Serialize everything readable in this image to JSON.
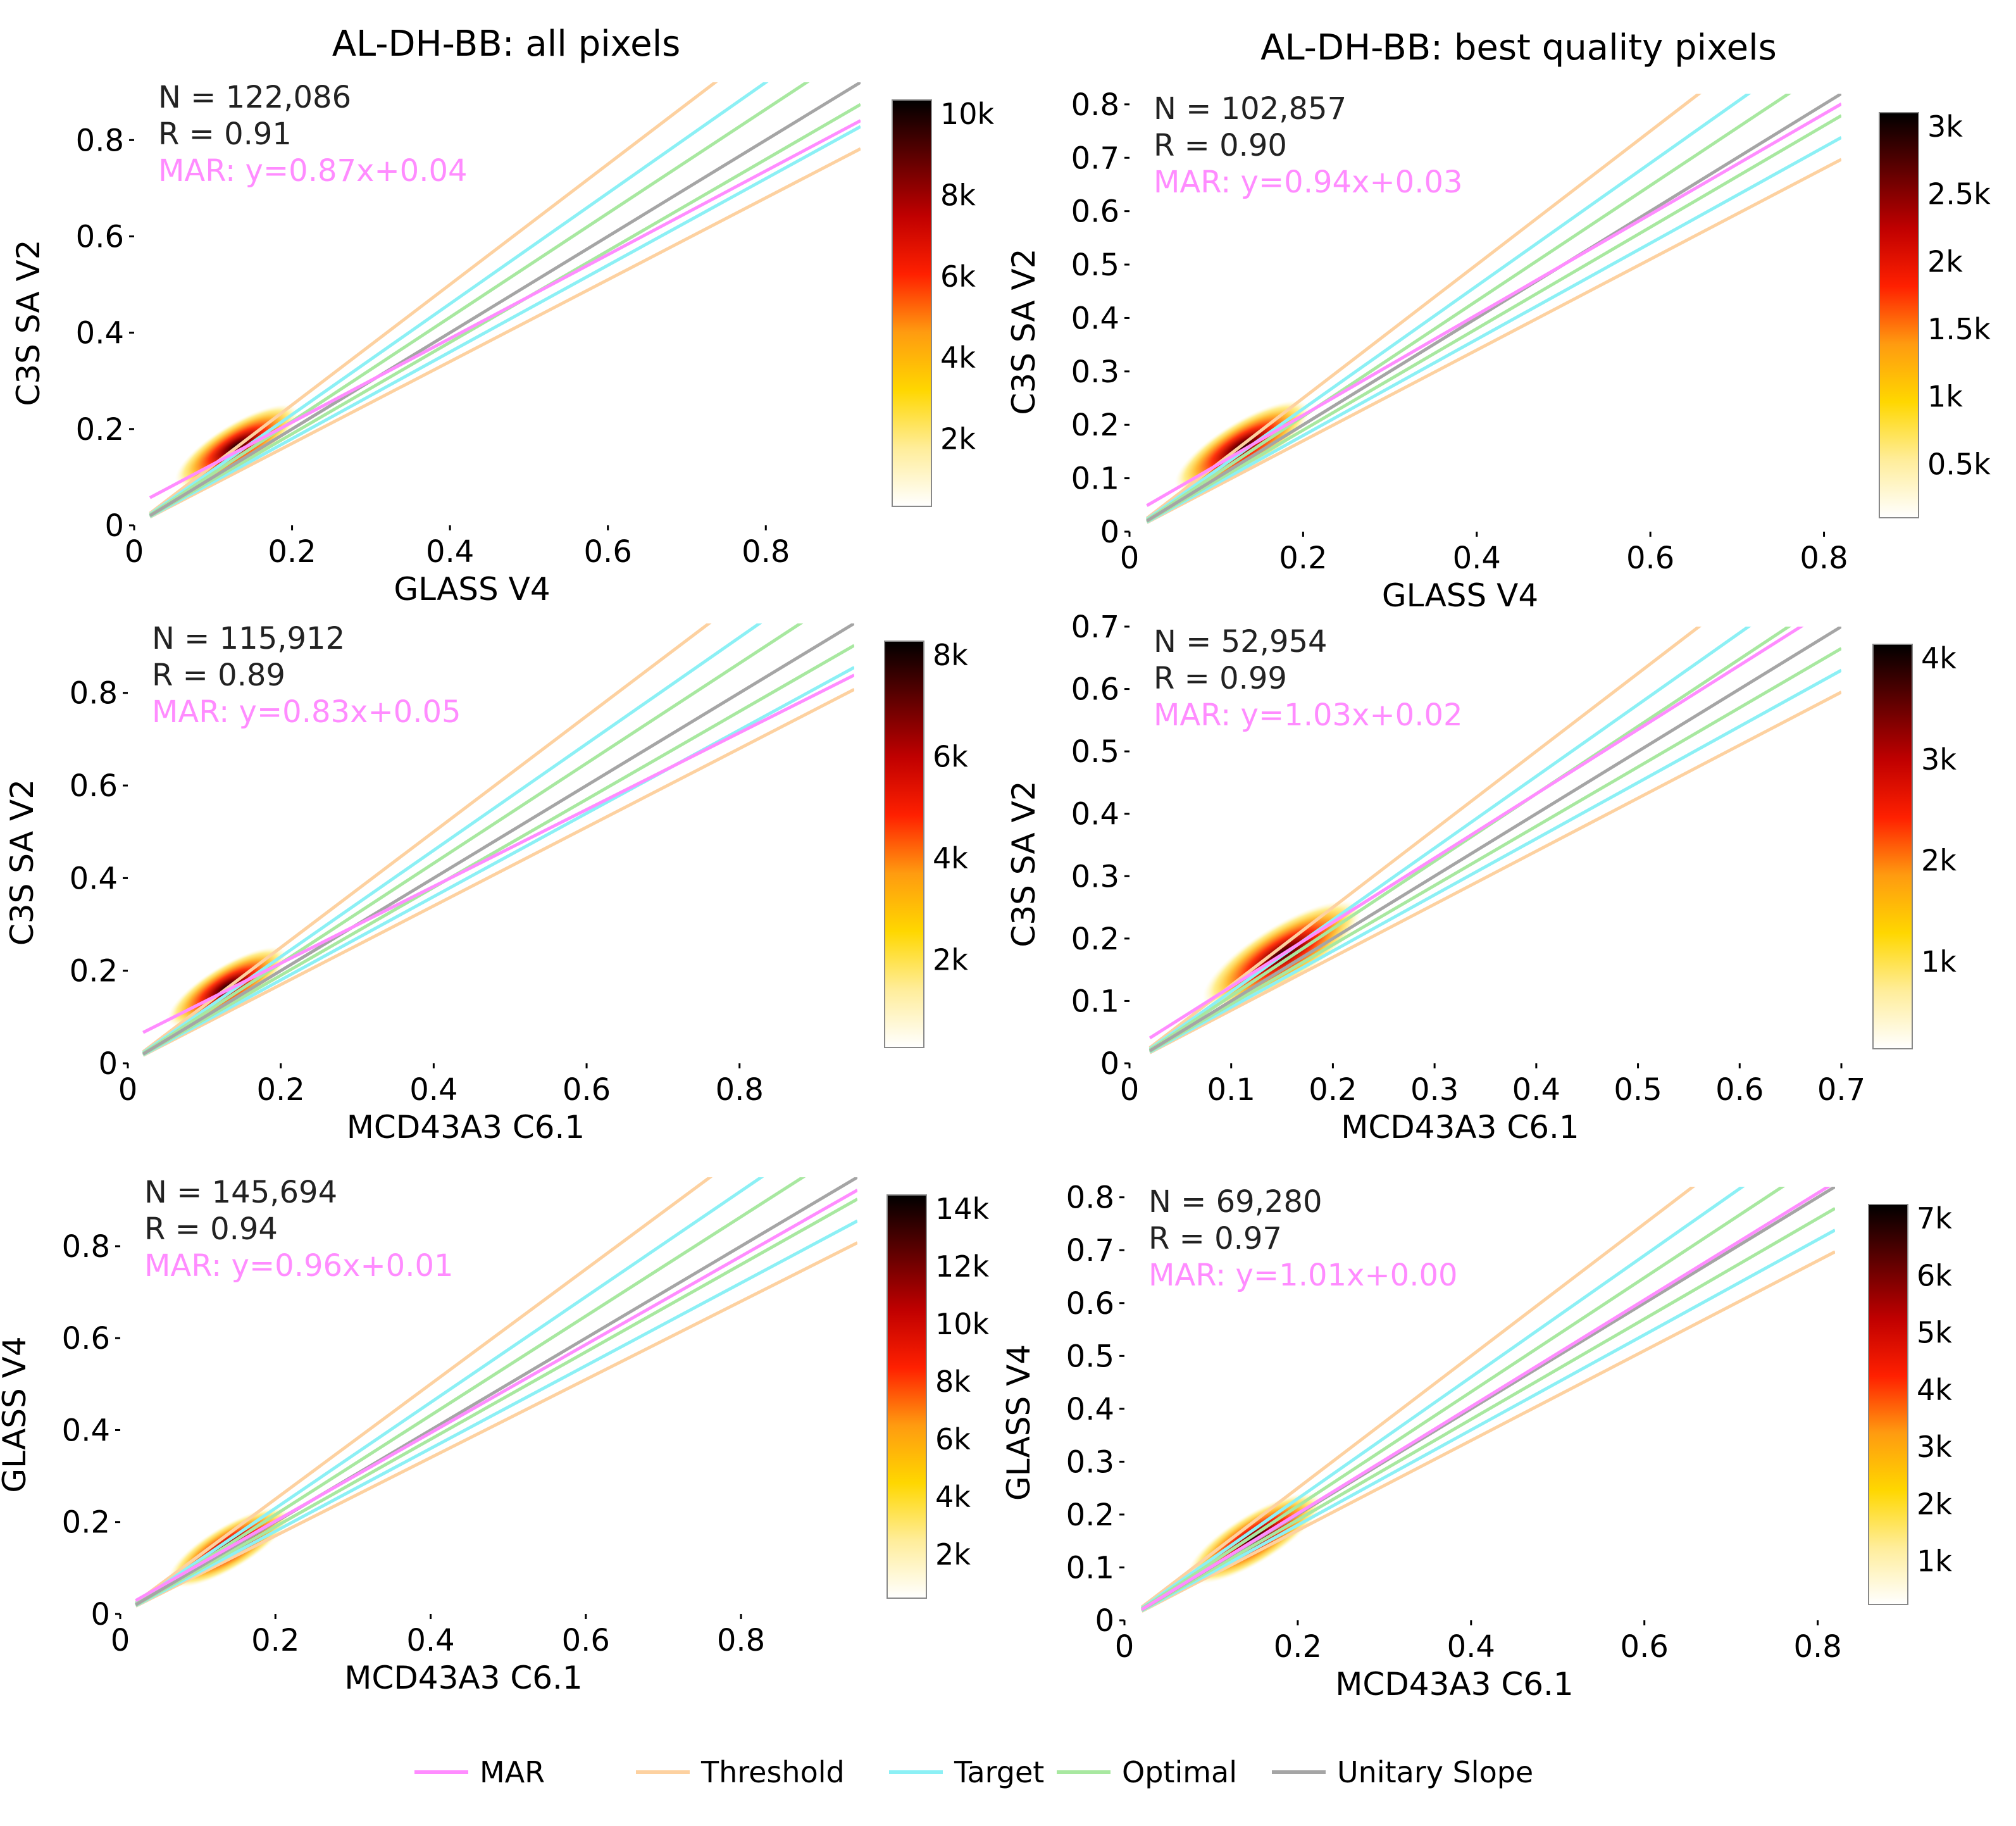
{
  "colors": {
    "mar": "#ff8cff",
    "threshold": "#fdd1a0",
    "target": "#8cf0f5",
    "optimal": "#a8e8a0",
    "unitary": "#a5a5a5",
    "colormap": [
      "#ffffff",
      "#ffed9a",
      "#ffd700",
      "#ff9b10",
      "#ff2000",
      "#c00000",
      "#600000",
      "#000000"
    ]
  },
  "titles": [
    "AL-DH-BB: all pixels",
    "AL-DH-BB: best quality pixels"
  ],
  "legend": [
    {
      "key": "mar",
      "label": "MAR"
    },
    {
      "key": "threshold",
      "label": "Threshold"
    },
    {
      "key": "target",
      "label": "Target"
    },
    {
      "key": "optimal",
      "label": "Optimal"
    },
    {
      "key": "unitary",
      "label": "Unitary Slope"
    }
  ],
  "chart_data": [
    {
      "type": "scatter",
      "xlabel": "GLASS V4",
      "ylabel": "C3S SA V2",
      "xlim": [
        0,
        0.92
      ],
      "ylim": [
        0,
        0.92
      ],
      "xticks": [
        "0",
        "0.2",
        "0.4",
        "0.6",
        "0.8"
      ],
      "yticks": [
        "0",
        "0.2",
        "0.4",
        "0.6",
        "0.8"
      ],
      "stats": {
        "n": "N = 122,086",
        "r": "R = 0.91",
        "mar": "MAR: y=0.87x+0.04"
      },
      "mar_fit": {
        "slope": 0.87,
        "intercept": 0.04
      },
      "bands": {
        "threshold": [
          1.25,
          0.85
        ],
        "target": [
          1.15,
          0.9
        ],
        "optimal": [
          1.08,
          0.95
        ]
      },
      "density_center": [
        0.13,
        0.165
      ],
      "colorbar": {
        "ticks": [
          "10k",
          "8k",
          "6k",
          "4k",
          "2k"
        ]
      }
    },
    {
      "type": "scatter",
      "xlabel": "GLASS V4",
      "ylabel": "C3S SA V2",
      "xlim": [
        0,
        0.82
      ],
      "ylim": [
        0,
        0.82
      ],
      "xticks": [
        "0",
        "0.2",
        "0.4",
        "0.6",
        "0.8"
      ],
      "yticks": [
        "0",
        "0.1",
        "0.2",
        "0.3",
        "0.4",
        "0.5",
        "0.6",
        "0.7",
        "0.8"
      ],
      "stats": {
        "n": "N = 102,857",
        "r": "R = 0.90",
        "mar": "MAR: y=0.94x+0.03"
      },
      "mar_fit": {
        "slope": 0.94,
        "intercept": 0.03
      },
      "bands": {
        "threshold": [
          1.25,
          0.85
        ],
        "target": [
          1.15,
          0.9
        ],
        "optimal": [
          1.08,
          0.95
        ]
      },
      "density_center": [
        0.13,
        0.16
      ],
      "colorbar": {
        "ticks": [
          "3k",
          "2.5k",
          "2k",
          "1.5k",
          "1k",
          "0.5k"
        ]
      }
    },
    {
      "type": "scatter",
      "xlabel": "MCD43A3 C6.1",
      "ylabel": "C3S SA V2",
      "xlim": [
        0,
        0.95
      ],
      "ylim": [
        0,
        0.95
      ],
      "xticks": [
        "0",
        "0.2",
        "0.4",
        "0.6",
        "0.8"
      ],
      "yticks": [
        "0",
        "0.2",
        "0.4",
        "0.6",
        "0.8"
      ],
      "stats": {
        "n": "N = 115,912",
        "r": "R = 0.89",
        "mar": "MAR: y=0.83x+0.05"
      },
      "mar_fit": {
        "slope": 0.83,
        "intercept": 0.05
      },
      "bands": {
        "threshold": [
          1.25,
          0.85
        ],
        "target": [
          1.15,
          0.9
        ],
        "optimal": [
          1.08,
          0.95
        ]
      },
      "density_center": [
        0.13,
        0.165
      ],
      "colorbar": {
        "ticks": [
          "8k",
          "6k",
          "4k",
          "2k"
        ]
      }
    },
    {
      "type": "scatter",
      "xlabel": "MCD43A3 C6.1",
      "ylabel": "C3S SA V2",
      "xlim": [
        0,
        0.7
      ],
      "ylim": [
        0,
        0.7
      ],
      "xticks": [
        "0",
        "0.1",
        "0.2",
        "0.3",
        "0.4",
        "0.5",
        "0.6",
        "0.7"
      ],
      "yticks": [
        "0",
        "0.1",
        "0.2",
        "0.3",
        "0.4",
        "0.5",
        "0.6",
        "0.7"
      ],
      "stats": {
        "n": "N = 52,954",
        "r": "R = 0.99",
        "mar": "MAR: y=1.03x+0.02"
      },
      "mar_fit": {
        "slope": 1.03,
        "intercept": 0.02
      },
      "bands": {
        "threshold": [
          1.25,
          0.85
        ],
        "target": [
          1.15,
          0.9
        ],
        "optimal": [
          1.08,
          0.95
        ]
      },
      "density_center": [
        0.15,
        0.175
      ],
      "colorbar": {
        "ticks": [
          "4k",
          "3k",
          "2k",
          "1k"
        ]
      }
    },
    {
      "type": "scatter",
      "xlabel": "MCD43A3 C6.1",
      "ylabel": "GLASS V4",
      "xlim": [
        0,
        0.95
      ],
      "ylim": [
        0,
        0.95
      ],
      "xticks": [
        "0",
        "0.2",
        "0.4",
        "0.6",
        "0.8"
      ],
      "yticks": [
        "0",
        "0.2",
        "0.4",
        "0.6",
        "0.8"
      ],
      "stats": {
        "n": "N = 145,694",
        "r": "R = 0.94",
        "mar": "MAR: y=0.96x+0.01"
      },
      "mar_fit": {
        "slope": 0.96,
        "intercept": 0.01
      },
      "bands": {
        "threshold": [
          1.25,
          0.85
        ],
        "target": [
          1.15,
          0.9
        ],
        "optimal": [
          1.08,
          0.95
        ]
      },
      "density_center": [
        0.14,
        0.145
      ],
      "colorbar": {
        "ticks": [
          "14k",
          "12k",
          "10k",
          "8k",
          "6k",
          "4k",
          "2k"
        ]
      }
    },
    {
      "type": "scatter",
      "xlabel": "MCD43A3 C6.1",
      "ylabel": "GLASS V4",
      "xlim": [
        0,
        0.82
      ],
      "ylim": [
        0,
        0.82
      ],
      "xticks": [
        "0",
        "0.2",
        "0.4",
        "0.6",
        "0.8"
      ],
      "yticks": [
        "0",
        "0.1",
        "0.2",
        "0.3",
        "0.4",
        "0.5",
        "0.6",
        "0.7",
        "0.8"
      ],
      "stats": {
        "n": "N = 69,280",
        "r": "R = 0.97",
        "mar": "MAR: y=1.01x+0.00"
      },
      "mar_fit": {
        "slope": 1.01,
        "intercept": 0.0
      },
      "bands": {
        "threshold": [
          1.25,
          0.85
        ],
        "target": [
          1.15,
          0.9
        ],
        "optimal": [
          1.08,
          0.95
        ]
      },
      "density_center": [
        0.15,
        0.155
      ],
      "colorbar": {
        "ticks": [
          "7k",
          "6k",
          "5k",
          "4k",
          "3k",
          "2k",
          "1k"
        ]
      }
    }
  ]
}
